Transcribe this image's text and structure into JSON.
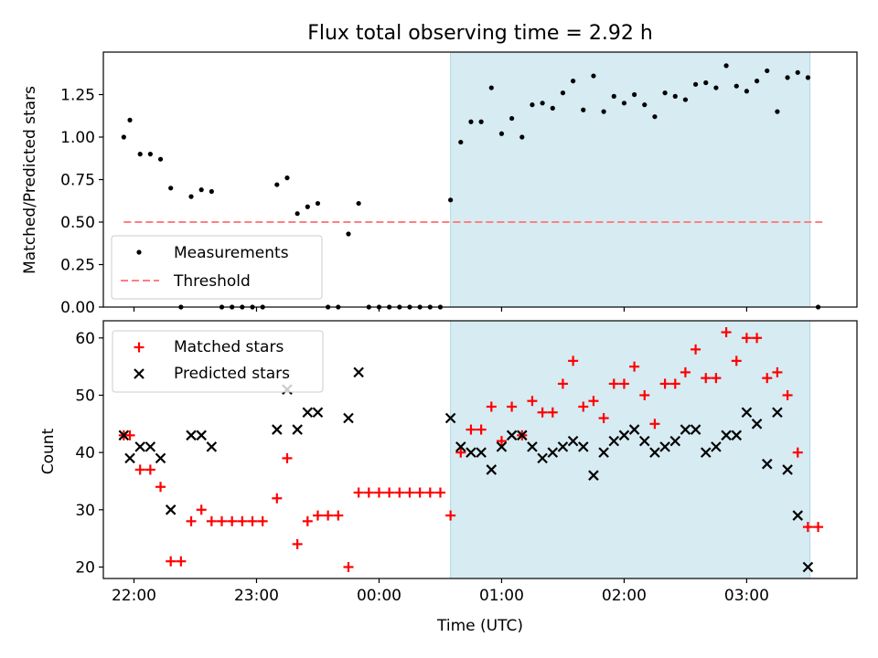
{
  "title": "Flux total observing time = 2.92 h",
  "xlabel": "Time (UTC)",
  "colors": {
    "measurements": "#000000",
    "threshold": "#ff7f7f",
    "matched": "#ff0000",
    "predicted": "#000000",
    "shade": "#add8e6"
  },
  "chart_data": [
    {
      "type": "scatter",
      "ylabel": "Matched/Predicted stars",
      "ylim": [
        0,
        1.5
      ],
      "yticks": [
        0.0,
        0.25,
        0.5,
        0.75,
        1.0,
        1.25
      ],
      "ytick_labels": [
        "0.00",
        "0.25",
        "0.50",
        "0.75",
        "1.00",
        "1.25"
      ],
      "xlim": [
        "21:45",
        "03:54"
      ],
      "shaded_interval": [
        "00:35",
        "03:31"
      ],
      "threshold": {
        "y": 0.5,
        "x_range": [
          "21:55",
          "03:37"
        ],
        "style": "dashed"
      },
      "legend": {
        "position": "lower-left",
        "entries": [
          "Measurements",
          "Threshold"
        ]
      },
      "series": [
        {
          "name": "Measurements",
          "marker": "dot",
          "points": [
            [
              "21:55",
              1.0
            ],
            [
              "21:58",
              1.1
            ],
            [
              "22:03",
              0.9
            ],
            [
              "22:08",
              0.9
            ],
            [
              "22:13",
              0.87
            ],
            [
              "22:18",
              0.7
            ],
            [
              "22:23",
              0.0
            ],
            [
              "22:28",
              0.65
            ],
            [
              "22:33",
              0.69
            ],
            [
              "22:38",
              0.68
            ],
            [
              "22:43",
              0.0
            ],
            [
              "22:48",
              0.0
            ],
            [
              "22:53",
              0.0
            ],
            [
              "22:58",
              0.0
            ],
            [
              "23:03",
              0.0
            ],
            [
              "23:10",
              0.72
            ],
            [
              "23:15",
              0.76
            ],
            [
              "23:20",
              0.55
            ],
            [
              "23:25",
              0.59
            ],
            [
              "23:30",
              0.61
            ],
            [
              "23:35",
              0.0
            ],
            [
              "23:40",
              0.0
            ],
            [
              "23:45",
              0.43
            ],
            [
              "23:50",
              0.61
            ],
            [
              "23:55",
              0.0
            ],
            [
              "00:00",
              0.0
            ],
            [
              "00:05",
              0.0
            ],
            [
              "00:10",
              0.0
            ],
            [
              "00:15",
              0.0
            ],
            [
              "00:20",
              0.0
            ],
            [
              "00:25",
              0.0
            ],
            [
              "00:30",
              0.0
            ],
            [
              "00:35",
              0.63
            ],
            [
              "00:40",
              0.97
            ],
            [
              "00:45",
              1.09
            ],
            [
              "00:50",
              1.09
            ],
            [
              "00:55",
              1.29
            ],
            [
              "01:00",
              1.02
            ],
            [
              "01:05",
              1.11
            ],
            [
              "01:10",
              1.0
            ],
            [
              "01:15",
              1.19
            ],
            [
              "01:20",
              1.2
            ],
            [
              "01:25",
              1.17
            ],
            [
              "01:30",
              1.26
            ],
            [
              "01:35",
              1.33
            ],
            [
              "01:40",
              1.16
            ],
            [
              "01:45",
              1.36
            ],
            [
              "01:50",
              1.15
            ],
            [
              "01:55",
              1.24
            ],
            [
              "02:00",
              1.2
            ],
            [
              "02:05",
              1.25
            ],
            [
              "02:10",
              1.19
            ],
            [
              "02:15",
              1.12
            ],
            [
              "02:20",
              1.26
            ],
            [
              "02:25",
              1.24
            ],
            [
              "02:30",
              1.22
            ],
            [
              "02:35",
              1.31
            ],
            [
              "02:40",
              1.32
            ],
            [
              "02:45",
              1.29
            ],
            [
              "02:50",
              1.42
            ],
            [
              "02:55",
              1.3
            ],
            [
              "03:00",
              1.27
            ],
            [
              "03:05",
              1.33
            ],
            [
              "03:10",
              1.39
            ],
            [
              "03:15",
              1.15
            ],
            [
              "03:20",
              1.35
            ],
            [
              "03:25",
              1.38
            ],
            [
              "03:30",
              1.35
            ],
            [
              "03:35",
              0.0
            ]
          ]
        }
      ]
    },
    {
      "type": "scatter",
      "ylabel": "Count",
      "ylim": [
        18,
        63
      ],
      "yticks": [
        20,
        30,
        40,
        50,
        60
      ],
      "xlim": [
        "21:45",
        "03:54"
      ],
      "xticks": [
        "22:00",
        "23:00",
        "00:00",
        "01:00",
        "02:00",
        "03:00"
      ],
      "shaded_interval": [
        "00:35",
        "03:31"
      ],
      "legend": {
        "position": "upper-left",
        "entries": [
          "Matched stars",
          "Predicted stars"
        ]
      },
      "series": [
        {
          "name": "Matched stars",
          "marker": "plus",
          "points": [
            [
              "21:55",
              43
            ],
            [
              "21:58",
              43
            ],
            [
              "22:03",
              37
            ],
            [
              "22:08",
              37
            ],
            [
              "22:13",
              34
            ],
            [
              "22:18",
              21
            ],
            [
              "22:23",
              21
            ],
            [
              "22:28",
              28
            ],
            [
              "22:33",
              30
            ],
            [
              "22:38",
              28
            ],
            [
              "22:43",
              28
            ],
            [
              "22:48",
              28
            ],
            [
              "22:53",
              28
            ],
            [
              "22:58",
              28
            ],
            [
              "23:03",
              28
            ],
            [
              "23:10",
              32
            ],
            [
              "23:15",
              39
            ],
            [
              "23:20",
              24
            ],
            [
              "23:25",
              28
            ],
            [
              "23:30",
              29
            ],
            [
              "23:35",
              29
            ],
            [
              "23:40",
              29
            ],
            [
              "23:45",
              20
            ],
            [
              "23:50",
              33
            ],
            [
              "23:55",
              33
            ],
            [
              "00:00",
              33
            ],
            [
              "00:05",
              33
            ],
            [
              "00:10",
              33
            ],
            [
              "00:15",
              33
            ],
            [
              "00:20",
              33
            ],
            [
              "00:25",
              33
            ],
            [
              "00:30",
              33
            ],
            [
              "00:35",
              29
            ],
            [
              "00:40",
              40
            ],
            [
              "00:45",
              44
            ],
            [
              "00:50",
              44
            ],
            [
              "00:55",
              48
            ],
            [
              "01:00",
              42
            ],
            [
              "01:05",
              48
            ],
            [
              "01:10",
              43
            ],
            [
              "01:15",
              49
            ],
            [
              "01:20",
              47
            ],
            [
              "01:25",
              47
            ],
            [
              "01:30",
              52
            ],
            [
              "01:35",
              56
            ],
            [
              "01:40",
              48
            ],
            [
              "01:45",
              49
            ],
            [
              "01:50",
              46
            ],
            [
              "01:55",
              52
            ],
            [
              "02:00",
              52
            ],
            [
              "02:05",
              55
            ],
            [
              "02:10",
              50
            ],
            [
              "02:15",
              45
            ],
            [
              "02:20",
              52
            ],
            [
              "02:25",
              52
            ],
            [
              "02:30",
              54
            ],
            [
              "02:35",
              58
            ],
            [
              "02:40",
              53
            ],
            [
              "02:45",
              53
            ],
            [
              "02:50",
              61
            ],
            [
              "02:55",
              56
            ],
            [
              "03:00",
              60
            ],
            [
              "03:05",
              60
            ],
            [
              "03:10",
              53
            ],
            [
              "03:15",
              54
            ],
            [
              "03:20",
              50
            ],
            [
              "03:25",
              40
            ],
            [
              "03:30",
              27
            ],
            [
              "03:35",
              27
            ]
          ]
        },
        {
          "name": "Predicted stars",
          "marker": "x",
          "points": [
            [
              "21:55",
              43
            ],
            [
              "21:58",
              39
            ],
            [
              "22:03",
              41
            ],
            [
              "22:08",
              41
            ],
            [
              "22:13",
              39
            ],
            [
              "22:18",
              30
            ],
            [
              "22:28",
              43
            ],
            [
              "22:33",
              43
            ],
            [
              "22:38",
              41
            ],
            [
              "23:10",
              44
            ],
            [
              "23:15",
              51
            ],
            [
              "23:20",
              44
            ],
            [
              "23:25",
              47
            ],
            [
              "23:30",
              47
            ],
            [
              "23:45",
              46
            ],
            [
              "23:50",
              54
            ],
            [
              "00:35",
              46
            ],
            [
              "00:40",
              41
            ],
            [
              "00:45",
              40
            ],
            [
              "00:50",
              40
            ],
            [
              "00:55",
              37
            ],
            [
              "01:00",
              41
            ],
            [
              "01:05",
              43
            ],
            [
              "01:10",
              43
            ],
            [
              "01:15",
              41
            ],
            [
              "01:20",
              39
            ],
            [
              "01:25",
              40
            ],
            [
              "01:30",
              41
            ],
            [
              "01:35",
              42
            ],
            [
              "01:40",
              41
            ],
            [
              "01:45",
              36
            ],
            [
              "01:50",
              40
            ],
            [
              "01:55",
              42
            ],
            [
              "02:00",
              43
            ],
            [
              "02:05",
              44
            ],
            [
              "02:10",
              42
            ],
            [
              "02:15",
              40
            ],
            [
              "02:20",
              41
            ],
            [
              "02:25",
              42
            ],
            [
              "02:30",
              44
            ],
            [
              "02:35",
              44
            ],
            [
              "02:40",
              40
            ],
            [
              "02:45",
              41
            ],
            [
              "02:50",
              43
            ],
            [
              "02:55",
              43
            ],
            [
              "03:00",
              47
            ],
            [
              "03:05",
              45
            ],
            [
              "03:10",
              38
            ],
            [
              "03:15",
              47
            ],
            [
              "03:20",
              37
            ],
            [
              "03:25",
              29
            ],
            [
              "03:30",
              20
            ]
          ]
        }
      ]
    }
  ]
}
